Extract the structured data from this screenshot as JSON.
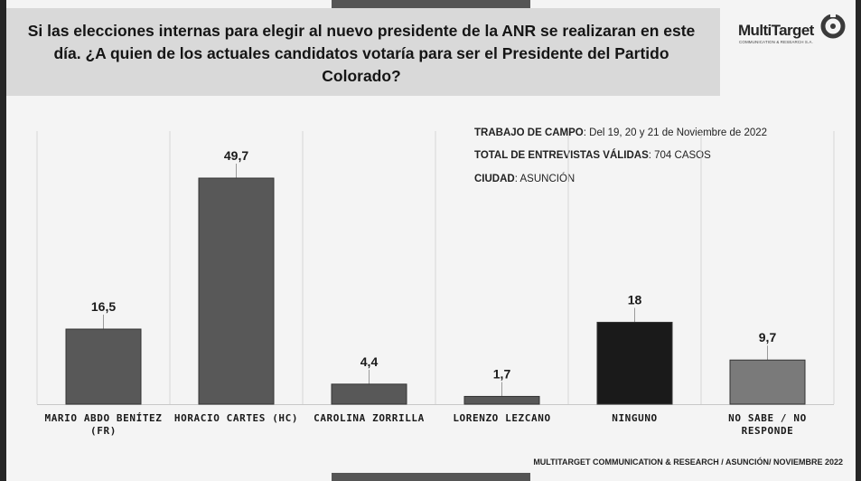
{
  "title": "Si las elecciones internas para elegir al nuevo presidente de la ANR se realizaran en este día. ¿A  quien de los actuales candidatos votaría para ser el Presidente del Partido Colorado?",
  "logo": {
    "name": "MultiTarget",
    "tagline": "COMMUNICATION & RESEARCH S.A."
  },
  "info": {
    "fieldwork_label": "TRABAJO DE CAMPO",
    "fieldwork_value": ": Del 19, 20 y 21  de Noviembre  de  2022",
    "interviews_label": "TOTAL DE ENTREVISTAS VÁLIDAS",
    "interviews_value": ": 704 CASOS",
    "city_label": "CIUDAD",
    "city_value": ": ASUNCIÓN"
  },
  "footer": "MULTITARGET COMMUNICATION & RESEARCH / ASUNCIÓN/ NOVIEMBRE  2022",
  "colors": {
    "bar_default": "#585858",
    "bar_ninguno": "#1a1a1a",
    "bar_nosabe": "#7a7a7a",
    "background": "#f4f4f4"
  },
  "chart_data": {
    "type": "bar",
    "title": "",
    "xlabel": "",
    "ylabel": "",
    "ylim": [
      0,
      60
    ],
    "grid": "vertical separators",
    "categories": [
      [
        "MARIO ABDO BENÍTEZ",
        "(FR)"
      ],
      [
        "HORACIO CARTES (HC)"
      ],
      [
        "CAROLINA ZORRILLA"
      ],
      [
        "LORENZO LEZCANO"
      ],
      [
        "NINGUNO"
      ],
      [
        "NO SABE / NO",
        "RESPONDE"
      ]
    ],
    "values": [
      16.5,
      49.7,
      4.4,
      1.7,
      18,
      9.7
    ],
    "value_labels": [
      "16,5",
      "49,7",
      "4,4",
      "1,7",
      "18",
      "9,7"
    ]
  }
}
